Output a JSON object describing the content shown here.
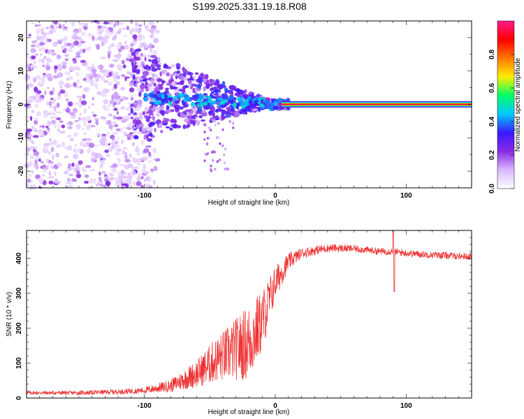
{
  "title": "S199.2025.331.19.18.R08",
  "chart_data": [
    {
      "type": "heatmap",
      "xlabel": "Height of straight line (km)",
      "ylabel": "Frequency (Hz)",
      "xlim": [
        -190,
        150
      ],
      "ylim": [
        -25,
        25
      ],
      "xticks": [
        -100,
        0,
        100
      ],
      "yticks": [
        20,
        10,
        0,
        -10,
        -20
      ],
      "colorbar": {
        "label": "Normalized spectral amplitude",
        "range": [
          0,
          1
        ],
        "ticks": [
          0.0,
          0.2,
          0.4,
          0.6,
          0.8
        ],
        "colors": [
          "#ffffff",
          "#d9b8ff",
          "#8a2be2",
          "#3a1aff",
          "#00c8ff",
          "#00ff66",
          "#ffee00",
          "#ff7700",
          "#ff0000",
          "#ff1a8c"
        ]
      },
      "signal_line": {
        "x_start": 5,
        "x_end": 150,
        "frequency": 0
      }
    },
    {
      "type": "line",
      "xlabel": "Height of straight line (km)",
      "ylabel": "SNR (10 * v/v)",
      "xlim": [
        -190,
        150
      ],
      "ylim": [
        0,
        480
      ],
      "xticks": [
        -100,
        0,
        100
      ],
      "yticks": [
        0,
        100,
        200,
        300,
        400
      ],
      "series": [
        {
          "name": "SNR",
          "color": "#ee3333",
          "x": [
            -190,
            -150,
            -120,
            -100,
            -80,
            -60,
            -45,
            -30,
            -20,
            -10,
            0,
            10,
            20,
            40,
            60,
            80,
            90,
            100,
            120,
            150
          ],
          "mean": [
            15,
            15,
            18,
            22,
            35,
            70,
            110,
            140,
            160,
            220,
            330,
            390,
            415,
            430,
            428,
            420,
            420,
            415,
            410,
            405
          ],
          "noise": [
            5,
            6,
            7,
            9,
            18,
            40,
            65,
            90,
            110,
            90,
            50,
            25,
            15,
            12,
            10,
            10,
            10,
            10,
            10,
            10
          ]
        }
      ],
      "features": [
        {
          "x": 90,
          "value": 480,
          "kind": "peak"
        },
        {
          "x": 91,
          "value": 305,
          "kind": "dip"
        }
      ]
    }
  ]
}
